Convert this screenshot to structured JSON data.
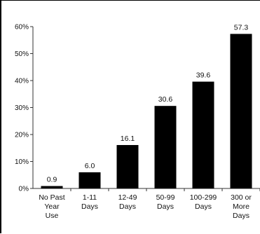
{
  "chart_data": {
    "type": "bar",
    "categories": [
      [
        "No Past",
        "Year",
        "Use"
      ],
      [
        "1-11",
        "Days"
      ],
      [
        "12-49",
        "Days"
      ],
      [
        "50-99",
        "Days"
      ],
      [
        "100-299",
        "Days"
      ],
      [
        "300 or",
        "More",
        "Days"
      ]
    ],
    "values": [
      0.9,
      6.0,
      16.1,
      30.6,
      39.6,
      57.3
    ],
    "data_labels": [
      "0.9",
      "6.0",
      "16.1",
      "30.6",
      "39.6",
      "57.3"
    ],
    "yticks": [
      0,
      10,
      20,
      30,
      40,
      50,
      60
    ],
    "ytick_labels": [
      "0%",
      "10%",
      "20%",
      "30%",
      "40%",
      "50%",
      "60%"
    ],
    "ylim": [
      0,
      60
    ],
    "title": "",
    "xlabel": "",
    "ylabel": "",
    "grid": false,
    "legend": "none",
    "bar_color": "#000000"
  }
}
